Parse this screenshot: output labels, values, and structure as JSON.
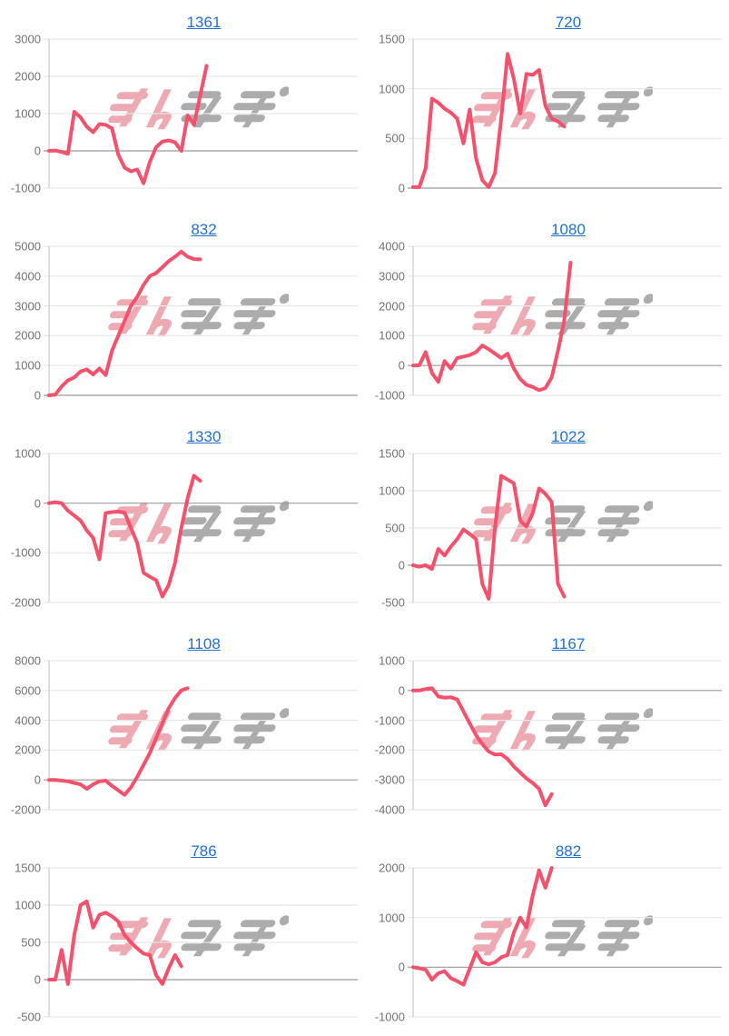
{
  "page": {
    "background": "#ffffff"
  },
  "style": {
    "line_color": "#f4516c",
    "grid_line_color": "#e6e6e6",
    "zero_line_color": "#9b9b9b",
    "axis_line_color": "#cccccc",
    "title_link_color": "#2270cc",
    "tick_label_color": "#737373"
  },
  "watermark": {
    "text": "みんレポ",
    "pink_text": "みん",
    "gray_text": "レポ",
    "pink_color": "#edaab2",
    "gray_color": "#acacac"
  },
  "chart_data": [
    {
      "type": "line",
      "title": "1361",
      "xlabel": "",
      "ylabel": "",
      "grid": true,
      "yticks": [
        3000,
        2000,
        1000,
        0,
        -1000
      ],
      "ylim": [
        -1000,
        3000
      ],
      "slots": 50,
      "values": [
        0,
        10,
        -30,
        -80,
        1050,
        900,
        650,
        500,
        720,
        700,
        600,
        -100,
        -450,
        -550,
        -500,
        -870,
        -300,
        100,
        250,
        280,
        230,
        0,
        950,
        700,
        1480,
        2280
      ]
    },
    {
      "type": "line",
      "title": "720",
      "xlabel": "",
      "ylabel": "",
      "grid": true,
      "yticks": [
        1500,
        1000,
        500,
        0
      ],
      "ylim": [
        0,
        1500
      ],
      "slots": 50,
      "values": [
        10,
        10,
        200,
        900,
        860,
        800,
        760,
        700,
        450,
        790,
        300,
        80,
        10,
        150,
        700,
        1350,
        1100,
        750,
        1150,
        1140,
        1190,
        830,
        700,
        670,
        620
      ]
    },
    {
      "type": "line",
      "title": "832",
      "xlabel": "",
      "ylabel": "",
      "grid": true,
      "yticks": [
        5000,
        4000,
        3000,
        2000,
        1000,
        0
      ],
      "ylim": [
        0,
        5000
      ],
      "slots": 50,
      "values": [
        0,
        20,
        300,
        500,
        600,
        800,
        870,
        700,
        900,
        680,
        1500,
        2000,
        2500,
        3000,
        3300,
        3700,
        4000,
        4100,
        4300,
        4500,
        4650,
        4820,
        4650,
        4570,
        4560
      ]
    },
    {
      "type": "line",
      "title": "1080",
      "xlabel": "",
      "ylabel": "",
      "grid": true,
      "yticks": [
        4000,
        3000,
        2000,
        1000,
        0,
        -1000
      ],
      "ylim": [
        -1000,
        4000
      ],
      "slots": 50,
      "values": [
        0,
        10,
        450,
        -250,
        -550,
        150,
        -100,
        250,
        300,
        350,
        450,
        670,
        550,
        400,
        250,
        400,
        -100,
        -450,
        -650,
        -720,
        -830,
        -760,
        -400,
        500,
        1500,
        3450
      ]
    },
    {
      "type": "line",
      "title": "1330",
      "xlabel": "",
      "ylabel": "",
      "grid": true,
      "yticks": [
        1000,
        0,
        -1000,
        -2000
      ],
      "ylim": [
        -2000,
        1000
      ],
      "slots": 50,
      "values": [
        0,
        20,
        0,
        -150,
        -250,
        -350,
        -550,
        -700,
        -1130,
        -200,
        -180,
        -170,
        -190,
        -500,
        -800,
        -1400,
        -1480,
        -1550,
        -1880,
        -1650,
        -1200,
        -500,
        100,
        550,
        450
      ]
    },
    {
      "type": "line",
      "title": "1022",
      "xlabel": "",
      "ylabel": "",
      "grid": true,
      "yticks": [
        1500,
        1000,
        500,
        0,
        -500
      ],
      "ylim": [
        -500,
        1500
      ],
      "slots": 50,
      "values": [
        0,
        -20,
        0,
        -50,
        220,
        130,
        250,
        350,
        480,
        420,
        350,
        -250,
        -450,
        500,
        1200,
        1150,
        1100,
        600,
        520,
        700,
        1030,
        960,
        850,
        -250,
        -420
      ]
    },
    {
      "type": "line",
      "title": "1108",
      "xlabel": "",
      "ylabel": "",
      "grid": true,
      "yticks": [
        8000,
        6000,
        4000,
        2000,
        0,
        -2000
      ],
      "ylim": [
        -2000,
        8000
      ],
      "slots": 50,
      "values": [
        0,
        0,
        -50,
        -100,
        -200,
        -300,
        -600,
        -300,
        -100,
        -50,
        -400,
        -700,
        -1000,
        -500,
        200,
        1000,
        1800,
        2800,
        3800,
        4800,
        5500,
        6000,
        6150
      ]
    },
    {
      "type": "line",
      "title": "1167",
      "xlabel": "",
      "ylabel": "",
      "grid": true,
      "yticks": [
        1000,
        0,
        -1000,
        -2000,
        -3000,
        -4000
      ],
      "ylim": [
        -4000,
        1000
      ],
      "slots": 50,
      "values": [
        0,
        0,
        50,
        80,
        -200,
        -240,
        -230,
        -300,
        -700,
        -1100,
        -1500,
        -1800,
        -2050,
        -2150,
        -2140,
        -2300,
        -2550,
        -2750,
        -2950,
        -3100,
        -3300,
        -3850,
        -3480
      ]
    },
    {
      "type": "line",
      "title": "786",
      "xlabel": "",
      "ylabel": "",
      "grid": true,
      "yticks": [
        1500,
        1000,
        500,
        0,
        -500
      ],
      "ylim": [
        -500,
        1500
      ],
      "slots": 50,
      "values": [
        0,
        0,
        400,
        -60,
        600,
        1000,
        1050,
        700,
        870,
        900,
        850,
        780,
        600,
        500,
        420,
        350,
        330,
        60,
        -60,
        150,
        330,
        180
      ]
    },
    {
      "type": "line",
      "title": "882",
      "xlabel": "",
      "ylabel": "",
      "grid": true,
      "yticks": [
        2000,
        1000,
        0,
        -1000
      ],
      "ylim": [
        -1000,
        2000
      ],
      "slots": 50,
      "values": [
        0,
        -20,
        -50,
        -250,
        -120,
        -80,
        -220,
        -280,
        -350,
        -30,
        300,
        100,
        60,
        100,
        200,
        250,
        700,
        1000,
        800,
        1450,
        1950,
        1600,
        2000
      ]
    }
  ]
}
